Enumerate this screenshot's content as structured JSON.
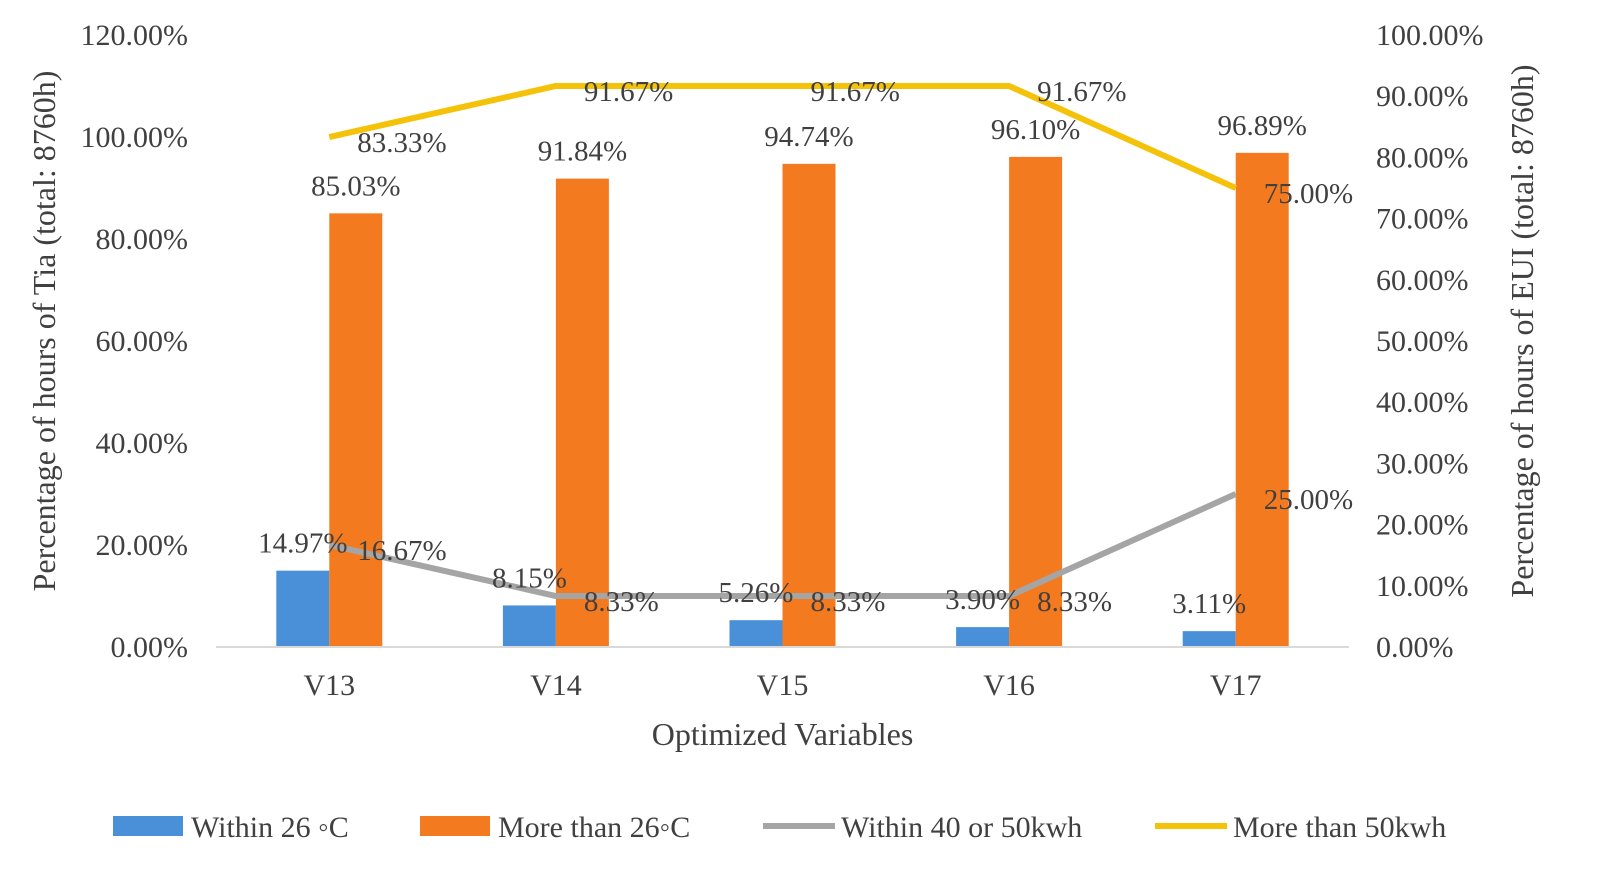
{
  "chart_data": {
    "type": "bar",
    "title": "",
    "xlabel": "Optimized Variables",
    "ylabel": "Percentage of hours of Tia (total: 8760h)",
    "y2label": "Percentage of hours of EUI (total: 8760h)",
    "categories": [
      "V13",
      "V14",
      "V15",
      "V16",
      "V17"
    ],
    "ylim": [
      0,
      120
    ],
    "y2lim": [
      0,
      100
    ],
    "yticks": [
      "0.00%",
      "20.00%",
      "40.00%",
      "60.00%",
      "80.00%",
      "100.00%",
      "120.00%"
    ],
    "y2ticks": [
      "0.00%",
      "10.00%",
      "20.00%",
      "30.00%",
      "40.00%",
      "50.00%",
      "60.00%",
      "70.00%",
      "80.00%",
      "90.00%",
      "100.00%"
    ],
    "grid": false,
    "legend_position": "bottom",
    "series": [
      {
        "name": "Within 26 ◦C",
        "kind": "bar",
        "axis": "left",
        "color": "#4a90d9",
        "values": [
          14.97,
          8.15,
          5.26,
          3.9,
          3.11
        ],
        "labels": [
          "14.97%",
          "8.15%",
          "5.26%",
          "3.90%",
          "3.11%"
        ]
      },
      {
        "name": "More than 26◦C",
        "kind": "bar",
        "axis": "left",
        "color": "#f47a20",
        "values": [
          85.03,
          91.84,
          94.74,
          96.1,
          96.89
        ],
        "labels": [
          "85.03%",
          "91.84%",
          "94.74%",
          "96.10%",
          "96.89%"
        ]
      },
      {
        "name": "Within 40 or 50kwh",
        "kind": "line",
        "axis": "right",
        "color": "#a5a5a5",
        "values": [
          16.67,
          8.33,
          8.33,
          8.33,
          25.0
        ],
        "labels": [
          "16.67%",
          "8.33%",
          "8.33%",
          "8.33%",
          "25.00%"
        ]
      },
      {
        "name": "More than 50kwh",
        "kind": "line",
        "axis": "right",
        "color": "#f5c20a",
        "values": [
          83.33,
          91.67,
          91.67,
          91.67,
          75.0
        ],
        "labels": [
          "83.33%",
          "91.67%",
          "91.67%",
          "91.67%",
          "75.00%"
        ]
      }
    ]
  }
}
